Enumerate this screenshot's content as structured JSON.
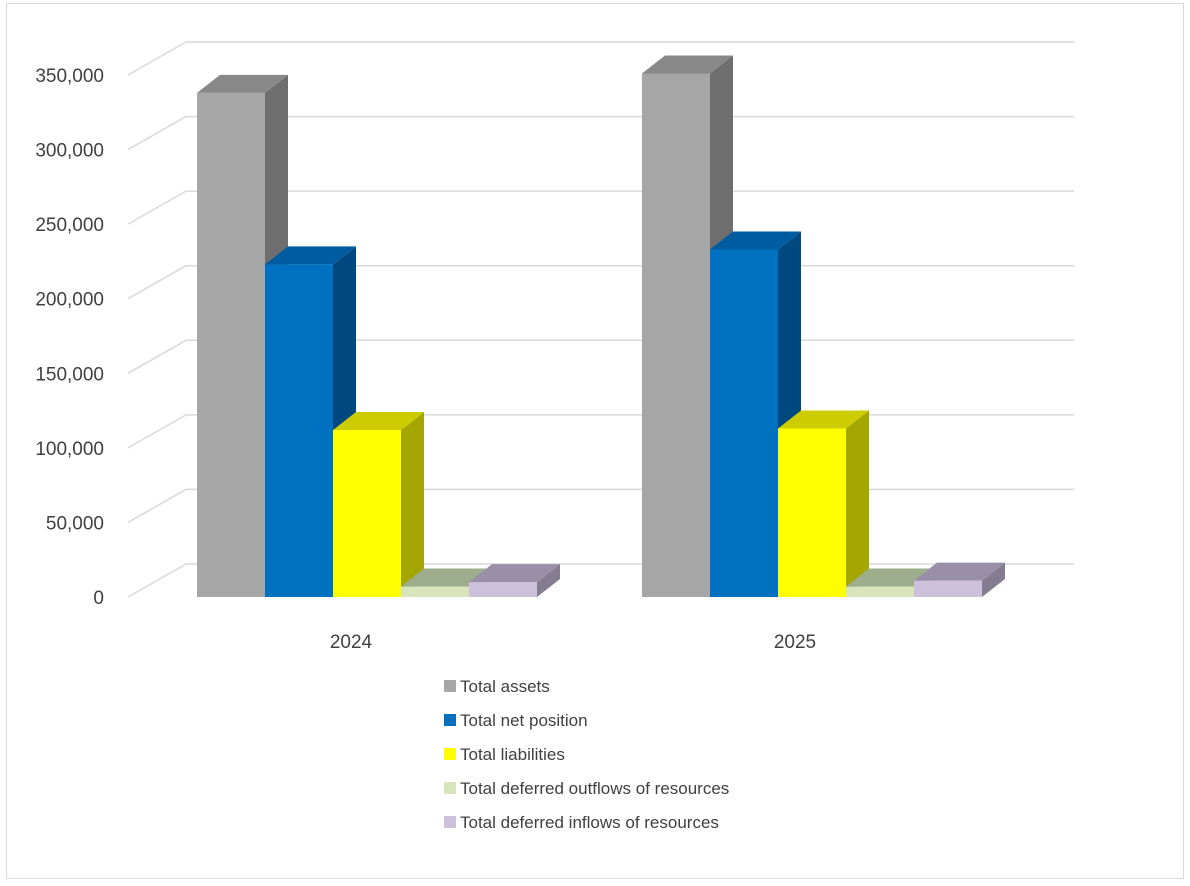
{
  "chart_data": {
    "type": "bar",
    "categories": [
      "2024",
      "2025"
    ],
    "series": [
      {
        "name": "Total assets",
        "values": [
          338000,
          351000
        ],
        "color": "#a6a6a6",
        "side": "#6e6e6e",
        "top": "#888888"
      },
      {
        "name": "Total net position",
        "values": [
          223000,
          233000
        ],
        "color": "#0070c0",
        "side": "#004880",
        "top": "#005ca0"
      },
      {
        "name": "Total liabilities",
        "values": [
          112000,
          113000
        ],
        "color": "#ffff00",
        "side": "#a6a600",
        "top": "#cccc00"
      },
      {
        "name": "Total deferred outflows of resources",
        "values": [
          7000,
          7000
        ],
        "color": "#d8e4bc",
        "side": "#8c9a7a",
        "top": "#9ead8c"
      },
      {
        "name": "Total deferred inflows of resources",
        "values": [
          10000,
          11000
        ],
        "color": "#ccc0da",
        "side": "#857c91",
        "top": "#9a8fa8"
      }
    ],
    "ylim": [
      0,
      350000
    ],
    "y_ticks": [
      "0",
      "50,000",
      "100,000",
      "150,000",
      "200,000",
      "250,000",
      "300,000",
      "350,000"
    ],
    "y_tick_values": [
      0,
      50000,
      100000,
      150000,
      200000,
      250000,
      300000,
      350000
    ],
    "grid": true,
    "legend_position": "bottom",
    "style": "3d-clustered-column"
  }
}
